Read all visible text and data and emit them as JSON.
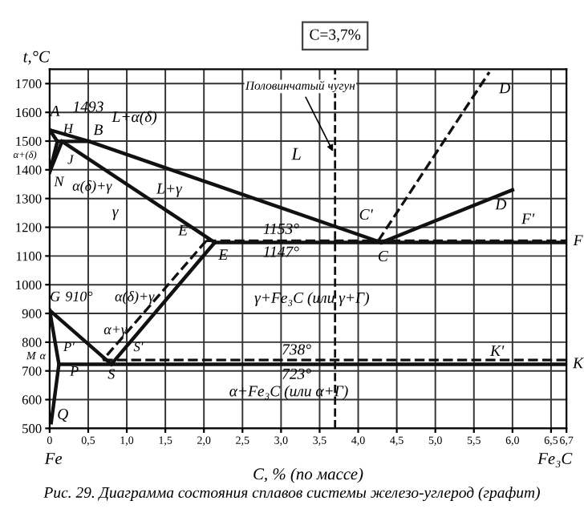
{
  "chart_data": {
    "type": "line",
    "title": "Рис. 29. Диаграмма состояния сплавов системы железо-углерод (графит)",
    "xlabel": "C, % (по массе)",
    "ylabel": "t,°C",
    "xlim": [
      0,
      6.7
    ],
    "ylim": [
      500,
      1750
    ],
    "xticks": [
      0,
      {
        "value": 0.5,
        "label": "0,5"
      },
      {
        "value": 1.0,
        "label": "1,0"
      },
      {
        "value": 1.5,
        "label": "1,5"
      },
      {
        "value": 2.0,
        "label": "2,0"
      },
      {
        "value": 2.5,
        "label": "2,5"
      },
      {
        "value": 3.0,
        "label": "3,0"
      },
      {
        "value": 3.5,
        "label": "3,5"
      },
      {
        "value": 4.0,
        "label": "4,0"
      },
      {
        "value": 4.5,
        "label": "4,5"
      },
      {
        "value": 5.0,
        "label": "5,0"
      },
      {
        "value": 5.5,
        "label": "5,5"
      },
      {
        "value": 6.0,
        "label": "6,0"
      },
      {
        "value": 6.5,
        "label": "6,5"
      },
      {
        "value": 6.7,
        "label": "6,7"
      }
    ],
    "yticks": [
      500,
      600,
      700,
      800,
      900,
      1000,
      1100,
      1200,
      1300,
      1400,
      1500,
      1600,
      1700
    ],
    "grid": true,
    "marker": "none",
    "series": [
      {
        "color": "#111111",
        "line_style": "solid",
        "x": [
          0,
          0.51,
          4.3
        ],
        "values": [
          1539,
          1499,
          1147
        ]
      },
      {
        "color": "#111111",
        "line_style": "solid",
        "x": [
          4.3,
          6.0
        ],
        "values": [
          1147,
          1330
        ]
      },
      {
        "color": "#111111",
        "line_style": "solid",
        "x": [
          0,
          0.1
        ],
        "values": [
          1539,
          1499
        ]
      },
      {
        "color": "#111111",
        "line_style": "solid",
        "x": [
          0.1,
          0.51
        ],
        "values": [
          1499,
          1499
        ]
      },
      {
        "color": "#111111",
        "line_style": "solid",
        "x": [
          0.1,
          0
        ],
        "values": [
          1499,
          1392
        ]
      },
      {
        "color": "#111111",
        "line_style": "solid",
        "x": [
          0.16,
          0
        ],
        "values": [
          1499,
          1392
        ]
      },
      {
        "color": "#111111",
        "line_style": "solid",
        "x": [
          0.16,
          2.14
        ],
        "values": [
          1499,
          1147
        ]
      },
      {
        "color": "#111111",
        "line_style": "solid",
        "x": [
          2.14,
          6.7
        ],
        "values": [
          1147,
          1147
        ]
      },
      {
        "color": "#111111",
        "line_style": "solid",
        "x": [
          2.14,
          0.8
        ],
        "values": [
          1147,
          723
        ]
      },
      {
        "color": "#111111",
        "line_style": "solid",
        "x": [
          0,
          0.8
        ],
        "values": [
          911,
          723
        ]
      },
      {
        "color": "#111111",
        "line_style": "solid",
        "x": [
          0,
          0.12,
          0.06,
          0.02
        ],
        "values": [
          911,
          723,
          600,
          520
        ]
      },
      {
        "color": "#111111",
        "line_style": "solid",
        "x": [
          0.12,
          6.7
        ],
        "values": [
          723,
          723
        ]
      },
      {
        "color": "#111111",
        "line_style": "dashed",
        "x": [
          2.03,
          6.7
        ],
        "values": [
          1153,
          1153
        ]
      },
      {
        "color": "#111111",
        "line_style": "dashed",
        "x": [
          2.03,
          0.69
        ],
        "values": [
          1153,
          738
        ]
      },
      {
        "color": "#111111",
        "line_style": "dashed",
        "x": [
          0.69,
          6.7
        ],
        "values": [
          738,
          738
        ]
      },
      {
        "color": "#111111",
        "line_style": "dashed",
        "x": [
          4.26,
          5.7
        ],
        "values": [
          1153,
          1740
        ]
      }
    ],
    "ref_lines": [
      {
        "axis": "x",
        "value": 3.7,
        "label": "Половинчатый чугун",
        "line_style": "dashed",
        "color": "#111111"
      }
    ],
    "annotations": [
      "C=3,7%",
      "A",
      "1493",
      "B",
      "L+α(δ)",
      "H",
      "α+(δ)",
      "J",
      "α(δ)+γ",
      "N",
      "L+γ",
      "γ",
      "E'",
      "E",
      "1153°",
      "1147°",
      "L",
      "C'",
      "C",
      "D",
      "D",
      "F'",
      "F",
      "γ+Fe₃C (или γ+Г)",
      "G",
      "910°",
      "α(δ)+γ",
      "α+γ",
      "M",
      "α",
      "P'",
      "S'",
      "P",
      "S",
      "738°",
      "723°",
      "K'",
      "K",
      "α+Fe₃C (или α+Г)",
      "Q",
      "Fe",
      "Fe₃C"
    ]
  }
}
